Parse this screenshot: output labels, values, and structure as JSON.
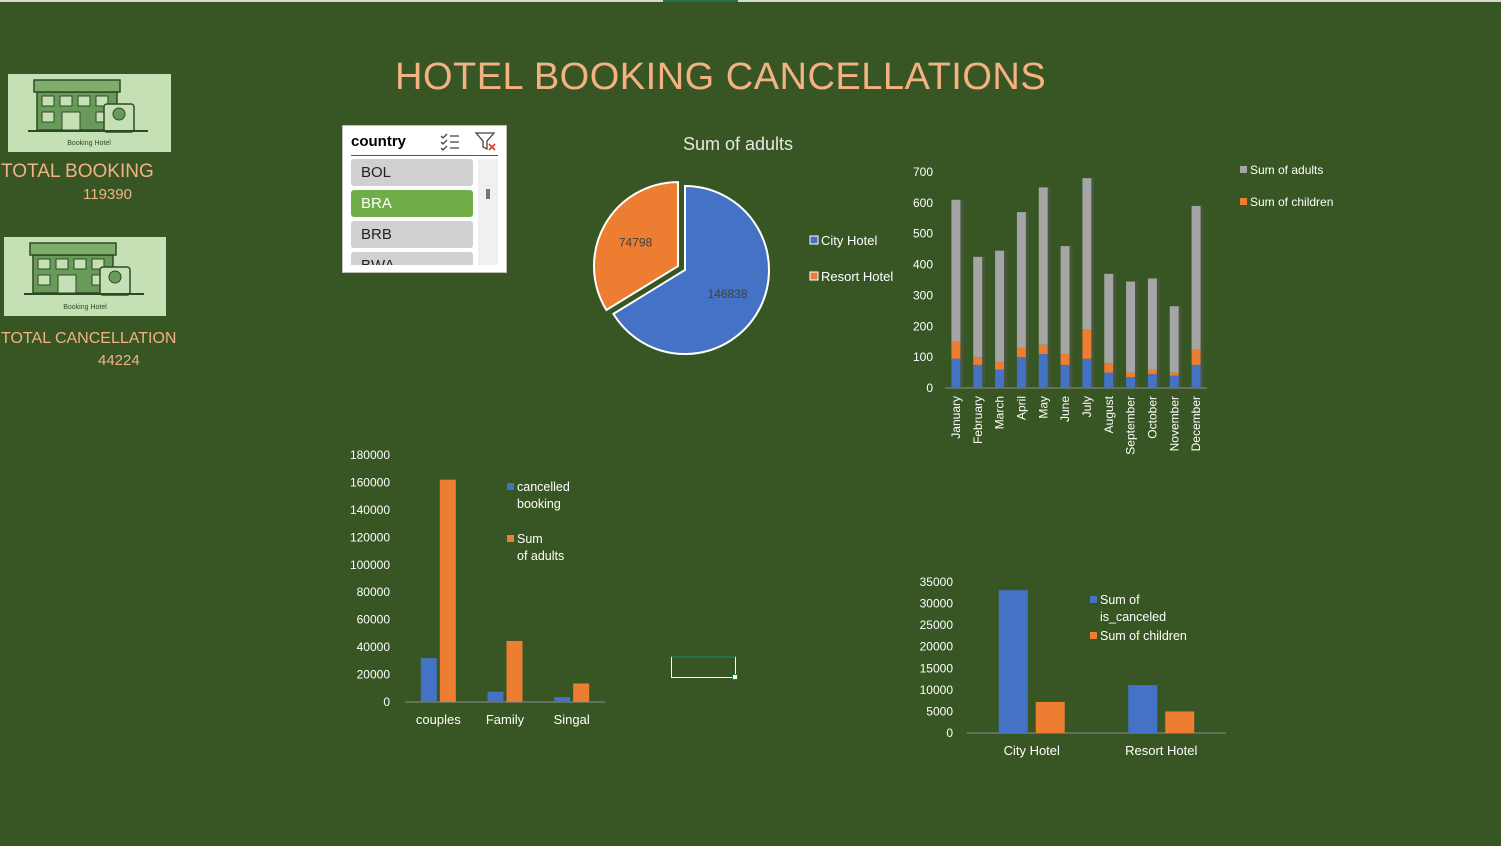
{
  "dashboard": {
    "title": "HOTEL BOOKING CANCELLATIONS",
    "kpis": [
      {
        "label": "TOTAL BOOKING",
        "value": "119390",
        "logo_caption": "Booking Hotel"
      },
      {
        "label": "TOTAL CANCELLATION",
        "value": "44224",
        "logo_caption": "Booking Hotel"
      }
    ]
  },
  "slicer": {
    "title": "country",
    "items": [
      "BOL",
      "BRA",
      "BRB",
      "BWA"
    ],
    "selected": "BRA",
    "icons": [
      "multi-select-icon",
      "clear-filter-icon"
    ]
  },
  "colors": {
    "background": "#375623",
    "title": "#f4b183",
    "blue": "#4472c4",
    "orange": "#ed7d31",
    "gray": "#a5a5a5",
    "text": "#ffffff",
    "logo_bg": "#c5e0b4"
  },
  "chart_data": [
    {
      "type": "pie",
      "title": "Sum of adults",
      "labels": [
        "City Hotel",
        "Resort Hotel"
      ],
      "values": [
        146838,
        74798
      ],
      "legend": "right",
      "exploded": "Resort Hotel"
    },
    {
      "type": "bar",
      "stacked": true,
      "categories": [
        "January",
        "February",
        "March",
        "April",
        "May",
        "June",
        "July",
        "August",
        "September",
        "October",
        "November",
        "December"
      ],
      "series": [
        {
          "name": "",
          "values": [
            95,
            75,
            60,
            100,
            110,
            75,
            95,
            50,
            35,
            45,
            40,
            75
          ]
        },
        {
          "name": "Sum of children",
          "values": [
            55,
            25,
            25,
            30,
            30,
            35,
            95,
            30,
            15,
            15,
            10,
            50
          ]
        },
        {
          "name": "Sum of adults",
          "values": [
            460,
            325,
            360,
            440,
            510,
            350,
            490,
            290,
            295,
            295,
            215,
            465
          ]
        }
      ],
      "ylim": [
        0,
        700
      ],
      "yticks": [
        0,
        100,
        200,
        300,
        400,
        500,
        600,
        700
      ],
      "legend": "right"
    },
    {
      "type": "bar",
      "categories": [
        "couples",
        "Family",
        "Singal"
      ],
      "series": [
        {
          "name": "cancelled booking",
          "values": [
            32000,
            7500,
            3500
          ]
        },
        {
          "name": "Sum of adults",
          "values": [
            162000,
            44500,
            13500
          ]
        }
      ],
      "ylim": [
        0,
        180000
      ],
      "yticks": [
        0,
        20000,
        40000,
        60000,
        80000,
        100000,
        120000,
        140000,
        160000,
        180000
      ],
      "legend": "right"
    },
    {
      "type": "bar",
      "categories": [
        "City Hotel",
        "Resort Hotel"
      ],
      "series": [
        {
          "name": "Sum of is_canceled",
          "values": [
            33100,
            11100
          ]
        },
        {
          "name": "Sum of children",
          "values": [
            7200,
            5000
          ]
        }
      ],
      "ylim": [
        0,
        35000
      ],
      "yticks": [
        0,
        5000,
        10000,
        15000,
        20000,
        25000,
        30000,
        35000
      ],
      "legend": "right"
    }
  ]
}
